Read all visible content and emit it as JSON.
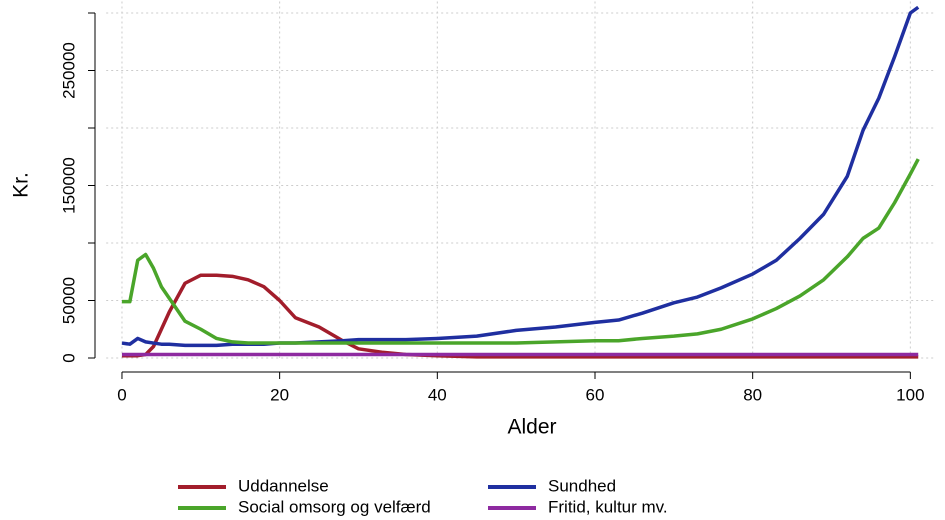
{
  "chart_data": {
    "type": "line",
    "xlabel": "Alder",
    "ylabel": "Kr.",
    "x": [
      0,
      1,
      2,
      3,
      4,
      5,
      6,
      8,
      10,
      12,
      14,
      16,
      18,
      20,
      22,
      25,
      28,
      30,
      33,
      36,
      40,
      45,
      50,
      55,
      60,
      63,
      66,
      70,
      73,
      76,
      80,
      83,
      86,
      89,
      92,
      94,
      96,
      98,
      100,
      101
    ],
    "series": [
      {
        "name": "Uddannelse",
        "color": "#a21d2b",
        "values": [
          2000,
          2000,
          2000,
          3000,
          10000,
          25000,
          40000,
          65000,
          72000,
          72000,
          71000,
          68000,
          62000,
          50000,
          35000,
          27000,
          15000,
          8000,
          5000,
          3000,
          2000,
          1000,
          1000,
          1000,
          1000,
          1000,
          1000,
          1000,
          1000,
          1000,
          1000,
          1000,
          1000,
          1000,
          1000,
          1000,
          1000,
          1000,
          1000,
          1000
        ]
      },
      {
        "name": "Sundhed",
        "color": "#1f2fa0",
        "values": [
          13000,
          12000,
          17000,
          14000,
          13000,
          12000,
          12000,
          11000,
          11000,
          11000,
          12000,
          12000,
          12000,
          13000,
          13000,
          14000,
          15000,
          16000,
          16000,
          16000,
          17000,
          19000,
          24000,
          27000,
          31000,
          33000,
          39000,
          48000,
          53000,
          61000,
          73000,
          85000,
          104000,
          125000,
          158000,
          198000,
          226000,
          262000,
          300000,
          305000
        ]
      },
      {
        "name": "Social omsorg og velfærd",
        "color": "#4aa52a",
        "values": [
          49000,
          49000,
          85000,
          90000,
          78000,
          62000,
          52000,
          32000,
          25000,
          17000,
          14000,
          13000,
          13000,
          13000,
          13000,
          13000,
          13000,
          13000,
          13000,
          13000,
          13000,
          13000,
          13000,
          14000,
          15000,
          15000,
          17000,
          19000,
          21000,
          25000,
          34000,
          43000,
          54000,
          68000,
          88000,
          104000,
          113000,
          135000,
          160000,
          173000
        ]
      },
      {
        "name": "Fritid, kultur mv.",
        "color": "#8e2aa0",
        "values": [
          3000,
          3000,
          3000,
          3000,
          3000,
          3000,
          3000,
          3000,
          3000,
          3000,
          3000,
          3000,
          3000,
          3000,
          3000,
          3000,
          3000,
          3000,
          3000,
          3000,
          3000,
          3000,
          3000,
          3000,
          3000,
          3000,
          3000,
          3000,
          3000,
          3000,
          3000,
          3000,
          3000,
          3000,
          3000,
          3000,
          3000,
          3000,
          3000,
          3000
        ]
      }
    ],
    "xlim": [
      -2,
      103
    ],
    "xticks": [
      0,
      20,
      40,
      60,
      80,
      100
    ],
    "ylim": [
      0,
      310000
    ],
    "yticks": [
      0,
      50000,
      150000,
      250000
    ],
    "ygrid": [
      0,
      50000,
      100000,
      150000,
      200000,
      250000,
      300000
    ],
    "grid": true,
    "legend": "bottom"
  }
}
